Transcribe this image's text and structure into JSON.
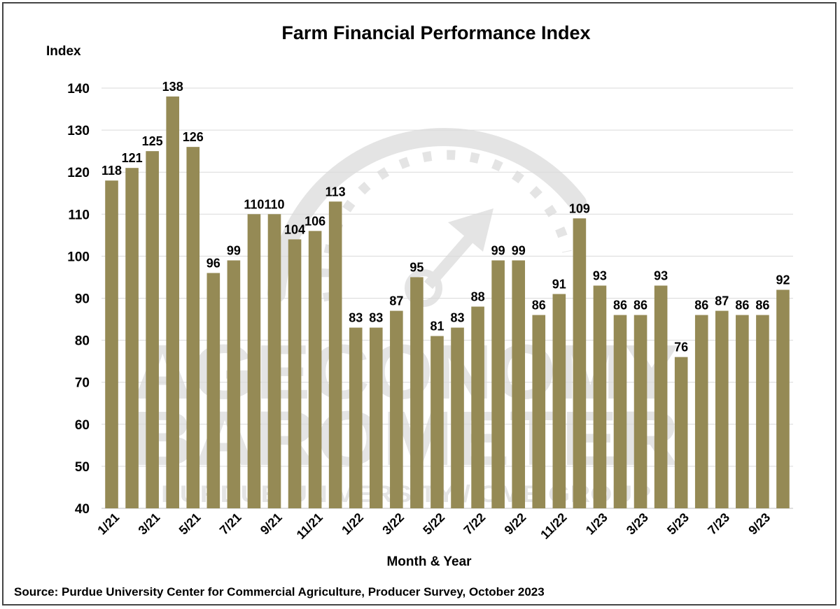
{
  "colors": {
    "bar": "#958a55",
    "grid": "#d9d9d9",
    "watermark": "#cfcfcf"
  },
  "watermark": {
    "icon": "gauge-arrow-icon",
    "line1": "AGECONOMY",
    "line2": "BAROMETER",
    "line3": "PURDUE UNIVERSITY / CME GROUP"
  },
  "source": "Source: Purdue University Center for Commercial Agriculture, Producer Survey, October 2023",
  "chart_data": {
    "type": "bar",
    "title": "Farm Financial Performance Index",
    "ylabel": "Index",
    "xlabel": "Month & Year",
    "ylim": [
      40,
      140
    ],
    "yticks": [
      40,
      50,
      60,
      70,
      80,
      90,
      100,
      110,
      120,
      130,
      140
    ],
    "grid": true,
    "categories": [
      "1/21",
      "2/21",
      "3/21",
      "4/21",
      "5/21",
      "6/21",
      "7/21",
      "8/21",
      "9/21",
      "10/21",
      "11/21",
      "12/21",
      "1/22",
      "2/22",
      "3/22",
      "4/22",
      "5/22",
      "6/22",
      "7/22",
      "8/22",
      "9/22",
      "10/22",
      "11/22",
      "12/22",
      "1/23",
      "2/23",
      "3/23",
      "4/23",
      "5/23",
      "6/23",
      "7/23",
      "8/23",
      "9/23",
      "10/23"
    ],
    "values": [
      118,
      121,
      125,
      138,
      126,
      96,
      99,
      110,
      110,
      104,
      106,
      113,
      83,
      83,
      87,
      95,
      81,
      83,
      88,
      99,
      99,
      86,
      91,
      109,
      93,
      86,
      86,
      93,
      76,
      86,
      87,
      86,
      86,
      92
    ],
    "tick_labels": [
      "1/21",
      "3/21",
      "5/21",
      "7/21",
      "9/21",
      "11/21",
      "1/22",
      "3/22",
      "5/22",
      "7/22",
      "9/22",
      "11/22",
      "1/23",
      "3/23",
      "5/23",
      "7/23",
      "9/23"
    ]
  }
}
